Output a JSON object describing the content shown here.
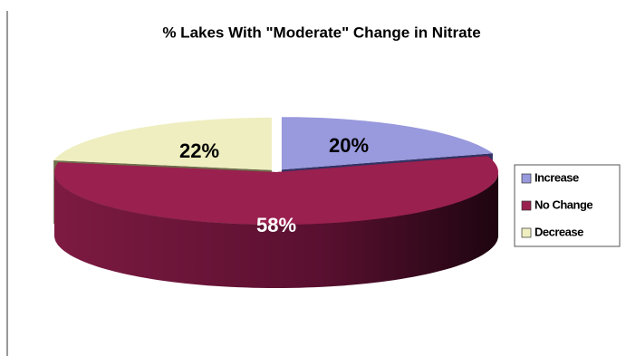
{
  "chart_data": {
    "type": "pie",
    "title": "% Lakes With \"Moderate\" Change in Nitrate",
    "categories": [
      "Increase",
      "No Change",
      "Decrease"
    ],
    "values": [
      20,
      58,
      22
    ],
    "value_labels": [
      "20%",
      "58%",
      "22%"
    ],
    "colors": [
      "#9999dd",
      "#99204f",
      "#eeeec0"
    ]
  }
}
